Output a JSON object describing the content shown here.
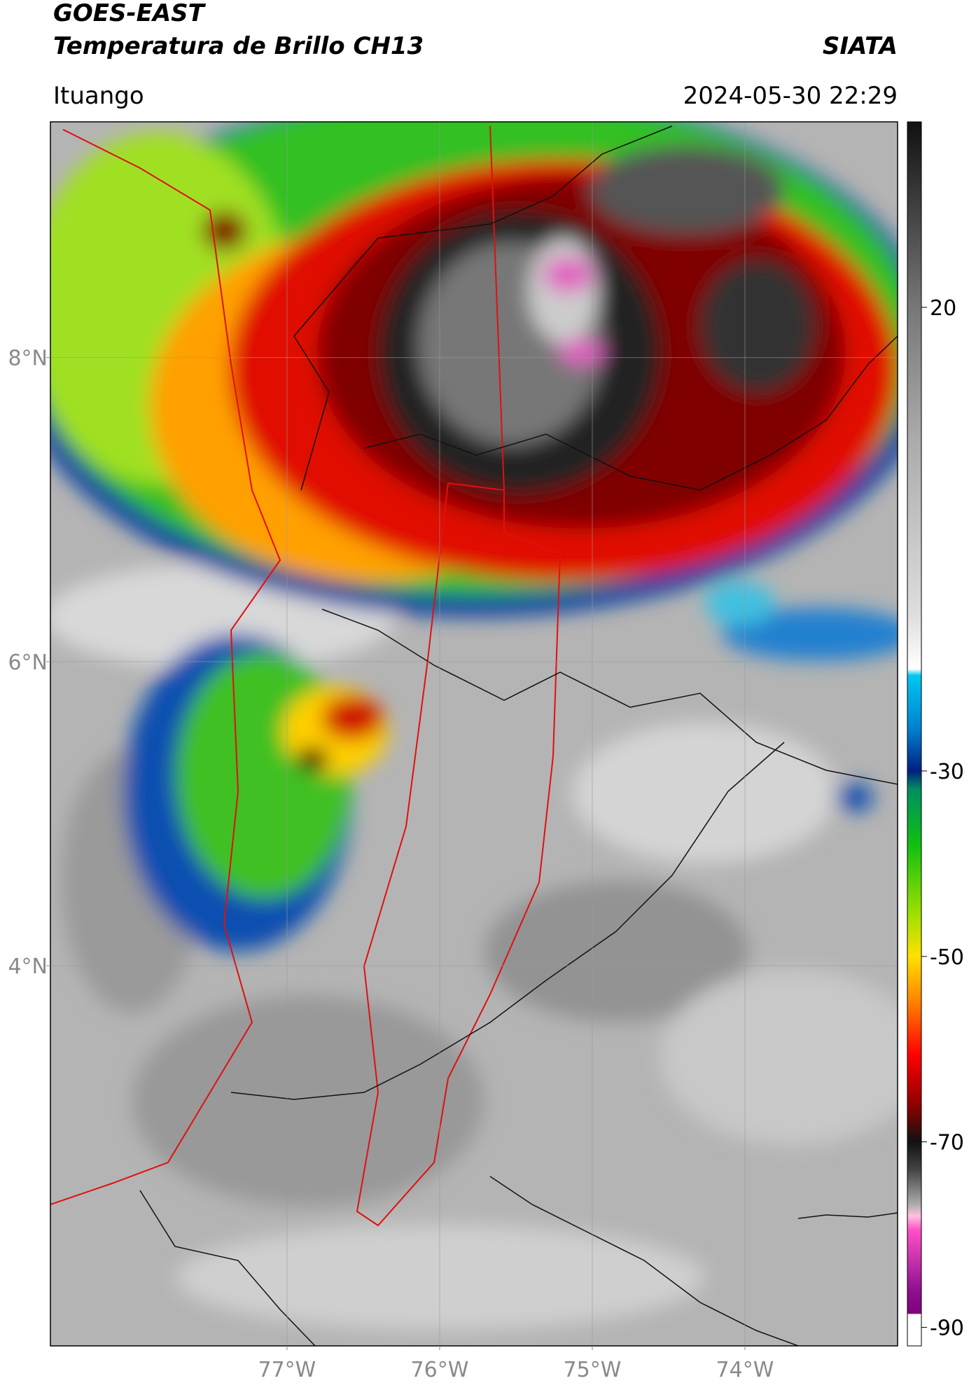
{
  "header": {
    "title": "GOES-EAST",
    "subtitle": "Temperatura de Brillo CH13",
    "organization": "SIATA",
    "location": "Ituango",
    "datetime": "2024-05-30 22:29"
  },
  "map": {
    "xlim": [
      -78.55,
      -73.0
    ],
    "ylim": [
      1.5,
      9.55
    ],
    "xticks": [
      {
        "value": -77,
        "label": "77°W"
      },
      {
        "value": -76,
        "label": "76°W"
      },
      {
        "value": -75,
        "label": "75°W"
      },
      {
        "value": -74,
        "label": "74°W"
      }
    ],
    "yticks": [
      {
        "value": 8,
        "label": "8°N"
      },
      {
        "value": 6,
        "label": "6°N"
      },
      {
        "value": 4,
        "label": "4°N"
      }
    ],
    "grid": true
  },
  "colorbar": {
    "clim": [
      -92,
      40
    ],
    "ticks": [
      20,
      -30,
      -50,
      -70,
      -90
    ],
    "colormap": [
      [
        40,
        "#111111"
      ],
      [
        30,
        "#444444"
      ],
      [
        20,
        "#777777"
      ],
      [
        6,
        "#aaaaaa"
      ],
      [
        -13,
        "#dddddd"
      ],
      [
        -19,
        "#ffffff"
      ],
      [
        -19.7,
        "#00c8f0"
      ],
      [
        -25.5,
        "#0080d0"
      ],
      [
        -30,
        "#002080"
      ],
      [
        -32,
        "#009060"
      ],
      [
        -38,
        "#10c010"
      ],
      [
        -45.5,
        "#a0e000"
      ],
      [
        -50,
        "#ffe000"
      ],
      [
        -55,
        "#ff8000"
      ],
      [
        -60.6,
        "#ff0000"
      ],
      [
        -66,
        "#900000"
      ],
      [
        -70,
        "#111111"
      ],
      [
        -73,
        "#444444"
      ],
      [
        -76.7,
        "#aaaaaa"
      ],
      [
        -78,
        "#ffc0e0"
      ],
      [
        -79.5,
        "#ff50c8"
      ],
      [
        -86,
        "#901090"
      ],
      [
        -88.5,
        "#800080"
      ],
      [
        -88.6,
        "#ffffff"
      ],
      [
        -92,
        "#ffffff"
      ]
    ]
  }
}
